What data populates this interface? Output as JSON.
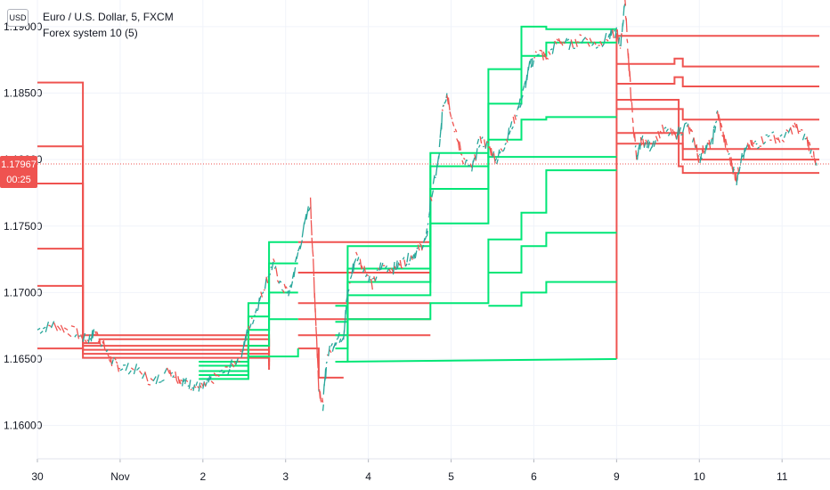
{
  "header": {
    "currency_button": "USD",
    "symbol_title": "Euro / U.S. Dollar, 5, FXCM",
    "indicator_title": "Forex system 10 (5)"
  },
  "price_badge": {
    "price": "1.17967",
    "countdown": "00:25",
    "color": "#ef5350"
  },
  "colors": {
    "green": "#00e676",
    "red": "#ef5350",
    "candle_up": "#26a69a",
    "candle_down": "#ef5350",
    "grid": "#f0f3fa",
    "axis_text": "#131722"
  },
  "chart_data": {
    "type": "line",
    "title": "Euro / U.S. Dollar, 5, FXCM",
    "ylim": [
      1.1575,
      1.192
    ],
    "y_ticks": [
      "1.19000",
      "1.18500",
      "1.18000",
      "1.17500",
      "1.17000",
      "1.16500",
      "1.16000"
    ],
    "x_ticks": [
      "30",
      "Nov",
      "2",
      "3",
      "4",
      "5",
      "6",
      "9",
      "10",
      "11"
    ],
    "x_range": [
      0,
      9.45
    ],
    "tick_positions": [
      0,
      1,
      2,
      3,
      4,
      5,
      6,
      7,
      8,
      9
    ],
    "current_price": 1.17967,
    "price_path": [
      [
        0,
        1.1672
      ],
      [
        0.2,
        1.1676
      ],
      [
        0.45,
        1.167
      ],
      [
        0.6,
        1.1664
      ],
      [
        0.7,
        1.167
      ],
      [
        0.8,
        1.166
      ],
      [
        0.9,
        1.1648
      ],
      [
        1.0,
        1.1644
      ],
      [
        1.2,
        1.1642
      ],
      [
        1.4,
        1.1632
      ],
      [
        1.6,
        1.1642
      ],
      [
        1.7,
        1.1636
      ],
      [
        1.8,
        1.1632
      ],
      [
        1.9,
        1.163
      ],
      [
        2.0,
        1.1628
      ],
      [
        2.1,
        1.1634
      ],
      [
        2.3,
        1.1642
      ],
      [
        2.45,
        1.1652
      ],
      [
        2.55,
        1.1672
      ],
      [
        2.65,
        1.1688
      ],
      [
        2.75,
        1.1706
      ],
      [
        2.85,
        1.1722
      ],
      [
        2.95,
        1.1704
      ],
      [
        3.05,
        1.17
      ],
      [
        3.15,
        1.173
      ],
      [
        3.3,
        1.1768
      ],
      [
        3.35,
        1.17
      ],
      [
        3.4,
        1.163
      ],
      [
        3.45,
        1.1614
      ],
      [
        3.5,
        1.1652
      ],
      [
        3.6,
        1.1664
      ],
      [
        3.7,
        1.1668
      ],
      [
        3.75,
        1.17
      ],
      [
        3.85,
        1.1728
      ],
      [
        3.95,
        1.1718
      ],
      [
        4.05,
        1.1706
      ],
      [
        4.15,
        1.172
      ],
      [
        4.3,
        1.1718
      ],
      [
        4.4,
        1.1722
      ],
      [
        4.5,
        1.1726
      ],
      [
        4.6,
        1.1732
      ],
      [
        4.7,
        1.174
      ],
      [
        4.75,
        1.1768
      ],
      [
        4.85,
        1.18
      ],
      [
        4.9,
        1.184
      ],
      [
        4.95,
        1.185
      ],
      [
        5.05,
        1.182
      ],
      [
        5.15,
        1.18
      ],
      [
        5.25,
        1.1792
      ],
      [
        5.35,
        1.1815
      ],
      [
        5.45,
        1.181
      ],
      [
        5.55,
        1.18
      ],
      [
        5.65,
        1.1812
      ],
      [
        5.75,
        1.1828
      ],
      [
        5.85,
        1.1845
      ],
      [
        5.95,
        1.187
      ],
      [
        6.05,
        1.1882
      ],
      [
        6.15,
        1.1876
      ],
      [
        6.3,
        1.189
      ],
      [
        6.45,
        1.1886
      ],
      [
        6.6,
        1.1892
      ],
      [
        6.75,
        1.1886
      ],
      [
        6.9,
        1.1892
      ],
      [
        7.0,
        1.1896
      ],
      [
        7.05,
        1.1885
      ],
      [
        7.1,
        1.192
      ],
      [
        7.15,
        1.187
      ],
      [
        7.2,
        1.1825
      ],
      [
        7.25,
        1.18
      ],
      [
        7.3,
        1.1815
      ],
      [
        7.4,
        1.181
      ],
      [
        7.55,
        1.1822
      ],
      [
        7.7,
        1.1818
      ],
      [
        7.85,
        1.1826
      ],
      [
        7.95,
        1.1812
      ],
      [
        8.0,
        1.18
      ],
      [
        8.05,
        1.1808
      ],
      [
        8.15,
        1.1812
      ],
      [
        8.22,
        1.1835
      ],
      [
        8.3,
        1.1815
      ],
      [
        8.4,
        1.1795
      ],
      [
        8.45,
        1.1785
      ],
      [
        8.5,
        1.18
      ],
      [
        8.6,
        1.181
      ],
      [
        8.7,
        1.1812
      ],
      [
        8.85,
        1.1818
      ],
      [
        9.0,
        1.1815
      ],
      [
        9.15,
        1.1825
      ],
      [
        9.3,
        1.1815
      ],
      [
        9.38,
        1.1802
      ],
      [
        9.42,
        1.1792
      ]
    ],
    "series": [
      {
        "color": "red",
        "points": [
          [
            0,
            1.1858
          ],
          [
            0.55,
            1.1858
          ],
          [
            0.55,
            1.1668
          ],
          [
            2.8,
            1.1668
          ],
          [
            2.8,
            1.1648
          ]
        ]
      },
      {
        "color": "red",
        "points": [
          [
            0,
            1.181
          ],
          [
            0.55,
            1.181
          ],
          [
            0.55,
            1.1662
          ],
          [
            0.75,
            1.1662
          ],
          [
            0.75,
            1.1665
          ],
          [
            2.8,
            1.1665
          ],
          [
            2.8,
            1.1645
          ]
        ]
      },
      {
        "color": "red",
        "points": [
          [
            0,
            1.1782
          ],
          [
            0.55,
            1.1782
          ],
          [
            0.55,
            1.166
          ],
          [
            2.8,
            1.166
          ]
        ]
      },
      {
        "color": "red",
        "points": [
          [
            0,
            1.1733
          ],
          [
            0.55,
            1.1733
          ],
          [
            0.55,
            1.1657
          ],
          [
            2.8,
            1.1657
          ]
        ]
      },
      {
        "color": "red",
        "points": [
          [
            0,
            1.1705
          ],
          [
            0.55,
            1.1705
          ],
          [
            0.55,
            1.1654
          ],
          [
            2.8,
            1.1654
          ]
        ]
      },
      {
        "color": "red",
        "points": [
          [
            0,
            1.1658
          ],
          [
            0.55,
            1.1658
          ],
          [
            0.55,
            1.1651
          ],
          [
            2.8,
            1.1651
          ],
          [
            2.8,
            1.1642
          ]
        ]
      },
      {
        "color": "red",
        "points": [
          [
            3.15,
            1.1738
          ],
          [
            4.75,
            1.1738
          ]
        ]
      },
      {
        "color": "red",
        "points": [
          [
            3.15,
            1.1715
          ],
          [
            4.75,
            1.1715
          ]
        ]
      },
      {
        "color": "red",
        "points": [
          [
            3.15,
            1.1692
          ],
          [
            4.75,
            1.1692
          ]
        ]
      },
      {
        "color": "red",
        "points": [
          [
            3.15,
            1.168
          ],
          [
            4.75,
            1.168
          ]
        ]
      },
      {
        "color": "red",
        "points": [
          [
            3.15,
            1.1668
          ],
          [
            4.75,
            1.1668
          ]
        ]
      },
      {
        "color": "red",
        "points": [
          [
            3.15,
            1.1658
          ],
          [
            3.4,
            1.1658
          ],
          [
            3.4,
            1.1636
          ],
          [
            3.7,
            1.1636
          ]
        ]
      },
      {
        "color": "red",
        "points": [
          [
            7.0,
            1.1893
          ],
          [
            9.45,
            1.1893
          ]
        ]
      },
      {
        "color": "red",
        "points": [
          [
            7.0,
            1.1872
          ],
          [
            7.7,
            1.1872
          ],
          [
            7.7,
            1.1876
          ],
          [
            7.8,
            1.1876
          ],
          [
            7.8,
            1.187
          ],
          [
            9.45,
            1.187
          ]
        ]
      },
      {
        "color": "red",
        "points": [
          [
            7.0,
            1.1857
          ],
          [
            7.7,
            1.1857
          ],
          [
            7.7,
            1.1862
          ],
          [
            7.8,
            1.1862
          ],
          [
            7.8,
            1.1855
          ],
          [
            9.45,
            1.1855
          ]
        ]
      },
      {
        "color": "red",
        "points": [
          [
            7.0,
            1.1845
          ],
          [
            7.75,
            1.1845
          ],
          [
            7.75,
            1.1838
          ],
          [
            7.8,
            1.1838
          ],
          [
            7.8,
            1.183
          ],
          [
            9.45,
            1.183
          ]
        ]
      },
      {
        "color": "red",
        "points": [
          [
            7.0,
            1.1838
          ],
          [
            7.75,
            1.1838
          ],
          [
            7.75,
            1.182
          ],
          [
            7.8,
            1.182
          ],
          [
            7.8,
            1.1808
          ],
          [
            9.45,
            1.1808
          ]
        ]
      },
      {
        "color": "red",
        "points": [
          [
            7.0,
            1.182
          ],
          [
            7.75,
            1.182
          ],
          [
            7.75,
            1.1812
          ],
          [
            7.8,
            1.1812
          ],
          [
            7.8,
            1.18
          ],
          [
            9.45,
            1.18
          ]
        ]
      },
      {
        "color": "red",
        "points": [
          [
            7.0,
            1.1812
          ],
          [
            7.75,
            1.1812
          ],
          [
            7.75,
            1.1795
          ],
          [
            7.8,
            1.1795
          ],
          [
            7.8,
            1.179
          ],
          [
            9.45,
            1.179
          ]
        ]
      },
      {
        "color": "red",
        "points": [
          [
            7.0,
            1.165
          ],
          [
            7.0,
            1.1895
          ]
        ]
      },
      {
        "color": "green",
        "points": [
          [
            1.95,
            1.1645
          ],
          [
            2.55,
            1.1645
          ],
          [
            2.55,
            1.166
          ],
          [
            2.8,
            1.166
          ],
          [
            2.8,
            1.168
          ],
          [
            3.15,
            1.168
          ]
        ]
      },
      {
        "color": "green",
        "points": [
          [
            1.95,
            1.1641
          ],
          [
            2.55,
            1.1641
          ],
          [
            2.55,
            1.1672
          ],
          [
            2.8,
            1.1672
          ],
          [
            2.8,
            1.17
          ],
          [
            3.15,
            1.17
          ]
        ]
      },
      {
        "color": "green",
        "points": [
          [
            1.95,
            1.1638
          ],
          [
            2.55,
            1.1638
          ],
          [
            2.55,
            1.1682
          ],
          [
            2.8,
            1.1682
          ],
          [
            2.8,
            1.1722
          ],
          [
            3.15,
            1.1722
          ]
        ]
      },
      {
        "color": "green",
        "points": [
          [
            1.95,
            1.1635
          ],
          [
            2.55,
            1.1635
          ],
          [
            2.55,
            1.1692
          ],
          [
            2.8,
            1.1692
          ],
          [
            2.8,
            1.1738
          ],
          [
            3.15,
            1.1738
          ]
        ]
      },
      {
        "color": "green",
        "points": [
          [
            1.95,
            1.1648
          ],
          [
            2.55,
            1.1648
          ],
          [
            2.55,
            1.1652
          ],
          [
            3.15,
            1.1652
          ],
          [
            3.15,
            1.1658
          ]
        ]
      },
      {
        "color": "green",
        "points": [
          [
            3.6,
            1.1648
          ],
          [
            3.75,
            1.1648
          ],
          [
            3.75,
            1.168
          ],
          [
            4.75,
            1.168
          ],
          [
            4.75,
            1.1692
          ],
          [
            5.45,
            1.1692
          ],
          [
            5.45,
            1.174
          ],
          [
            5.85,
            1.174
          ],
          [
            5.85,
            1.176
          ],
          [
            6.15,
            1.176
          ],
          [
            6.15,
            1.1792
          ],
          [
            7.0,
            1.1792
          ]
        ]
      },
      {
        "color": "green",
        "points": [
          [
            3.6,
            1.1658
          ],
          [
            3.75,
            1.1658
          ],
          [
            3.75,
            1.1698
          ],
          [
            4.75,
            1.1698
          ],
          [
            4.75,
            1.1752
          ],
          [
            5.45,
            1.1752
          ],
          [
            5.45,
            1.1815
          ],
          [
            5.85,
            1.1815
          ],
          [
            5.85,
            1.183
          ],
          [
            6.15,
            1.183
          ],
          [
            6.15,
            1.1832
          ],
          [
            7.0,
            1.1832
          ]
        ]
      },
      {
        "color": "green",
        "points": [
          [
            3.6,
            1.1668
          ],
          [
            3.75,
            1.1668
          ],
          [
            3.75,
            1.1708
          ],
          [
            4.75,
            1.1708
          ],
          [
            4.75,
            1.1778
          ],
          [
            5.45,
            1.1778
          ],
          [
            5.45,
            1.1842
          ],
          [
            5.85,
            1.1842
          ],
          [
            5.85,
            1.1878
          ],
          [
            6.15,
            1.1878
          ],
          [
            6.15,
            1.1888
          ],
          [
            7.0,
            1.1888
          ]
        ]
      },
      {
        "color": "green",
        "points": [
          [
            3.6,
            1.1678
          ],
          [
            3.75,
            1.1678
          ],
          [
            3.75,
            1.1718
          ],
          [
            4.75,
            1.1718
          ],
          [
            4.75,
            1.1795
          ],
          [
            5.45,
            1.1795
          ],
          [
            5.45,
            1.1868
          ],
          [
            5.85,
            1.1868
          ],
          [
            5.85,
            1.19
          ],
          [
            6.15,
            1.19
          ],
          [
            6.15,
            1.1898
          ],
          [
            7.0,
            1.1898
          ]
        ]
      },
      {
        "color": "green",
        "points": [
          [
            3.6,
            1.169
          ],
          [
            3.75,
            1.169
          ],
          [
            3.75,
            1.1735
          ],
          [
            4.75,
            1.1735
          ],
          [
            4.75,
            1.1805
          ],
          [
            5.45,
            1.1805
          ],
          [
            5.45,
            1.1802
          ],
          [
            7.0,
            1.1802
          ]
        ]
      },
      {
        "color": "green",
        "points": [
          [
            3.6,
            1.1648
          ],
          [
            7.0,
            1.165
          ]
        ]
      },
      {
        "color": "green",
        "points": [
          [
            5.45,
            1.1715
          ],
          [
            5.85,
            1.1715
          ],
          [
            5.85,
            1.1735
          ],
          [
            6.15,
            1.1735
          ],
          [
            6.15,
            1.1745
          ],
          [
            7.0,
            1.1745
          ]
        ]
      },
      {
        "color": "green",
        "points": [
          [
            5.45,
            1.169
          ],
          [
            5.85,
            1.169
          ],
          [
            5.85,
            1.17
          ],
          [
            6.15,
            1.17
          ],
          [
            6.15,
            1.1708
          ],
          [
            7.0,
            1.1708
          ]
        ]
      }
    ]
  }
}
